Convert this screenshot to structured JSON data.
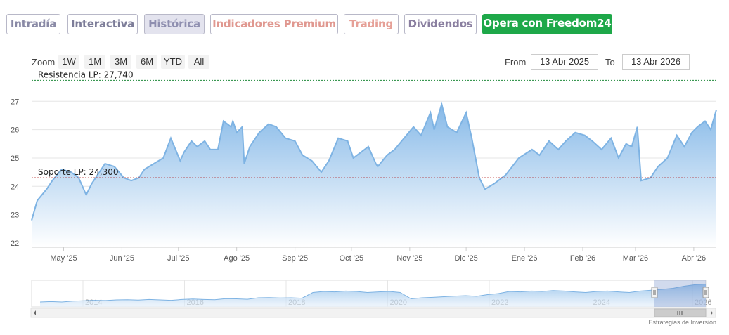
{
  "tabs": [
    {
      "label": "Intradía",
      "color": "#8a8aa6",
      "active": false
    },
    {
      "label": "Interactiva",
      "color": "#7d7d99",
      "active": false
    },
    {
      "label": "Histórica",
      "color": "#8f8fb0",
      "active": true
    },
    {
      "label": "Indicadores Premium",
      "color": "#e09890",
      "active": false
    },
    {
      "label": "Trading",
      "color": "#e6a097",
      "active": false
    },
    {
      "label": "Dividendos",
      "color": "#8a7fa0",
      "active": false
    },
    {
      "label": "Opera con Freedom24",
      "color": "#ffffff",
      "bg": "#1ea849",
      "active": false
    }
  ],
  "zoom": {
    "label": "Zoom",
    "buttons": [
      "1W",
      "1M",
      "3M",
      "6M",
      "YTD",
      "All"
    ]
  },
  "range": {
    "from_label": "From",
    "from_value": "13 Abr 2025",
    "to_label": "To",
    "to_value": "13 Abr 2026"
  },
  "credits": "Estrategias de Inversión",
  "colors": {
    "area_stroke": "#7eb3e3",
    "area_fill_top": "#86b9e8",
    "area_fill_bottom": "#ffffff",
    "grid": "#e6e6e6",
    "resistance": "#1f8a3a",
    "support": "#b22222"
  },
  "chart_data": {
    "type": "area",
    "y_ticks": [
      22,
      23,
      24,
      25,
      26,
      27
    ],
    "ylim": [
      21.85,
      27.85
    ],
    "x_labels": [
      "May '25",
      "Jun '25",
      "Jul '25",
      "Ago '25",
      "Sep '25",
      "Oct '25",
      "Nov '25",
      "Dic '25",
      "Ene '26",
      "Feb '26",
      "Mar '26",
      "Abr '26"
    ],
    "annotations": [
      {
        "label": "Resistencia LP: 27,740",
        "value": 27.74,
        "style": "dotted",
        "color": "#1f8a3a"
      },
      {
        "label": "Soporte LP: 24,300",
        "value": 24.3,
        "style": "dotted",
        "color": "#b22222"
      }
    ],
    "series": [
      {
        "x": [
          "2025-04-14",
          "2025-04-17",
          "2025-04-22",
          "2025-04-25",
          "2025-04-30",
          "2025-05-05",
          "2025-05-09",
          "2025-05-13",
          "2025-05-16",
          "2025-05-19",
          "2025-05-23",
          "2025-05-28",
          "2025-06-02",
          "2025-06-06",
          "2025-06-10",
          "2025-06-13",
          "2025-06-18",
          "2025-06-23",
          "2025-06-27",
          "2025-07-02",
          "2025-07-04",
          "2025-07-08",
          "2025-07-11",
          "2025-07-15",
          "2025-07-18",
          "2025-07-22",
          "2025-07-25",
          "2025-07-29",
          "2025-07-30",
          "2025-08-01",
          "2025-08-04",
          "2025-08-05",
          "2025-08-08",
          "2025-08-13",
          "2025-08-18",
          "2025-08-22",
          "2025-08-27",
          "2025-09-01",
          "2025-09-05",
          "2025-09-10",
          "2025-09-15",
          "2025-09-19",
          "2025-09-24",
          "2025-09-29",
          "2025-10-02",
          "2025-10-06",
          "2025-10-10",
          "2025-10-14",
          "2025-10-15",
          "2025-10-20",
          "2025-10-24",
          "2025-10-29",
          "2025-11-03",
          "2025-11-07",
          "2025-11-12",
          "2025-11-14",
          "2025-11-18",
          "2025-11-21",
          "2025-11-26",
          "2025-12-01",
          "2025-12-04",
          "2025-12-08",
          "2025-12-11",
          "2025-12-16",
          "2025-12-22",
          "2025-12-29",
          "2026-01-05",
          "2026-01-09",
          "2026-01-14",
          "2026-01-19",
          "2026-01-23",
          "2026-01-28",
          "2026-02-02",
          "2026-02-06",
          "2026-02-11",
          "2026-02-16",
          "2026-02-20",
          "2026-02-24",
          "2026-02-27",
          "2026-03-02",
          "2026-03-04",
          "2026-03-09",
          "2026-03-13",
          "2026-03-18",
          "2026-03-23",
          "2026-03-27",
          "2026-03-31",
          "2026-04-03",
          "2026-04-07",
          "2026-04-10",
          "2026-04-13"
        ],
        "y": [
          22.8,
          23.5,
          23.9,
          24.2,
          24.6,
          24.5,
          24.3,
          23.7,
          24.1,
          24.4,
          24.8,
          24.7,
          24.3,
          24.2,
          24.3,
          24.6,
          24.8,
          25.0,
          25.7,
          24.9,
          25.2,
          25.6,
          25.4,
          25.6,
          25.3,
          25.3,
          26.3,
          26.1,
          26.3,
          25.9,
          26.1,
          24.8,
          25.4,
          25.9,
          26.2,
          26.1,
          25.7,
          25.6,
          25.1,
          24.9,
          24.5,
          24.9,
          25.7,
          25.6,
          25.0,
          25.2,
          25.4,
          24.8,
          24.7,
          25.1,
          25.3,
          25.7,
          26.1,
          25.8,
          26.6,
          26.0,
          26.9,
          26.1,
          25.9,
          26.6,
          25.7,
          24.3,
          23.9,
          24.1,
          24.4,
          25.0,
          25.3,
          25.1,
          25.6,
          25.3,
          25.6,
          25.9,
          25.8,
          25.6,
          25.3,
          25.7,
          25.0,
          25.5,
          25.4,
          26.1,
          24.2,
          24.3,
          24.7,
          25.0,
          25.8,
          25.4,
          25.9,
          26.1,
          26.3,
          26.0,
          26.7
        ]
      }
    ],
    "navigator": {
      "years": [
        "2014",
        "2016",
        "2018",
        "2020",
        "2022",
        "2024",
        "2026"
      ],
      "values": [
        0.1,
        0.12,
        0.1,
        0.14,
        0.16,
        0.18,
        0.17,
        0.2,
        0.21,
        0.19,
        0.22,
        0.2,
        0.18,
        0.22,
        0.24,
        0.22,
        0.21,
        0.26,
        0.25,
        0.23,
        0.3,
        0.31,
        0.29,
        0.3,
        0.28,
        0.55,
        0.6,
        0.58,
        0.62,
        0.6,
        0.55,
        0.58,
        0.6,
        0.55,
        0.25,
        0.3,
        0.32,
        0.35,
        0.38,
        0.4,
        0.37,
        0.45,
        0.5,
        0.6,
        0.58,
        0.62,
        0.6,
        0.64,
        0.62,
        0.58,
        0.55,
        0.6,
        0.62,
        0.58,
        0.55,
        0.62,
        0.66,
        0.7,
        0.75,
        0.85,
        0.92,
        0.95
      ]
    }
  }
}
